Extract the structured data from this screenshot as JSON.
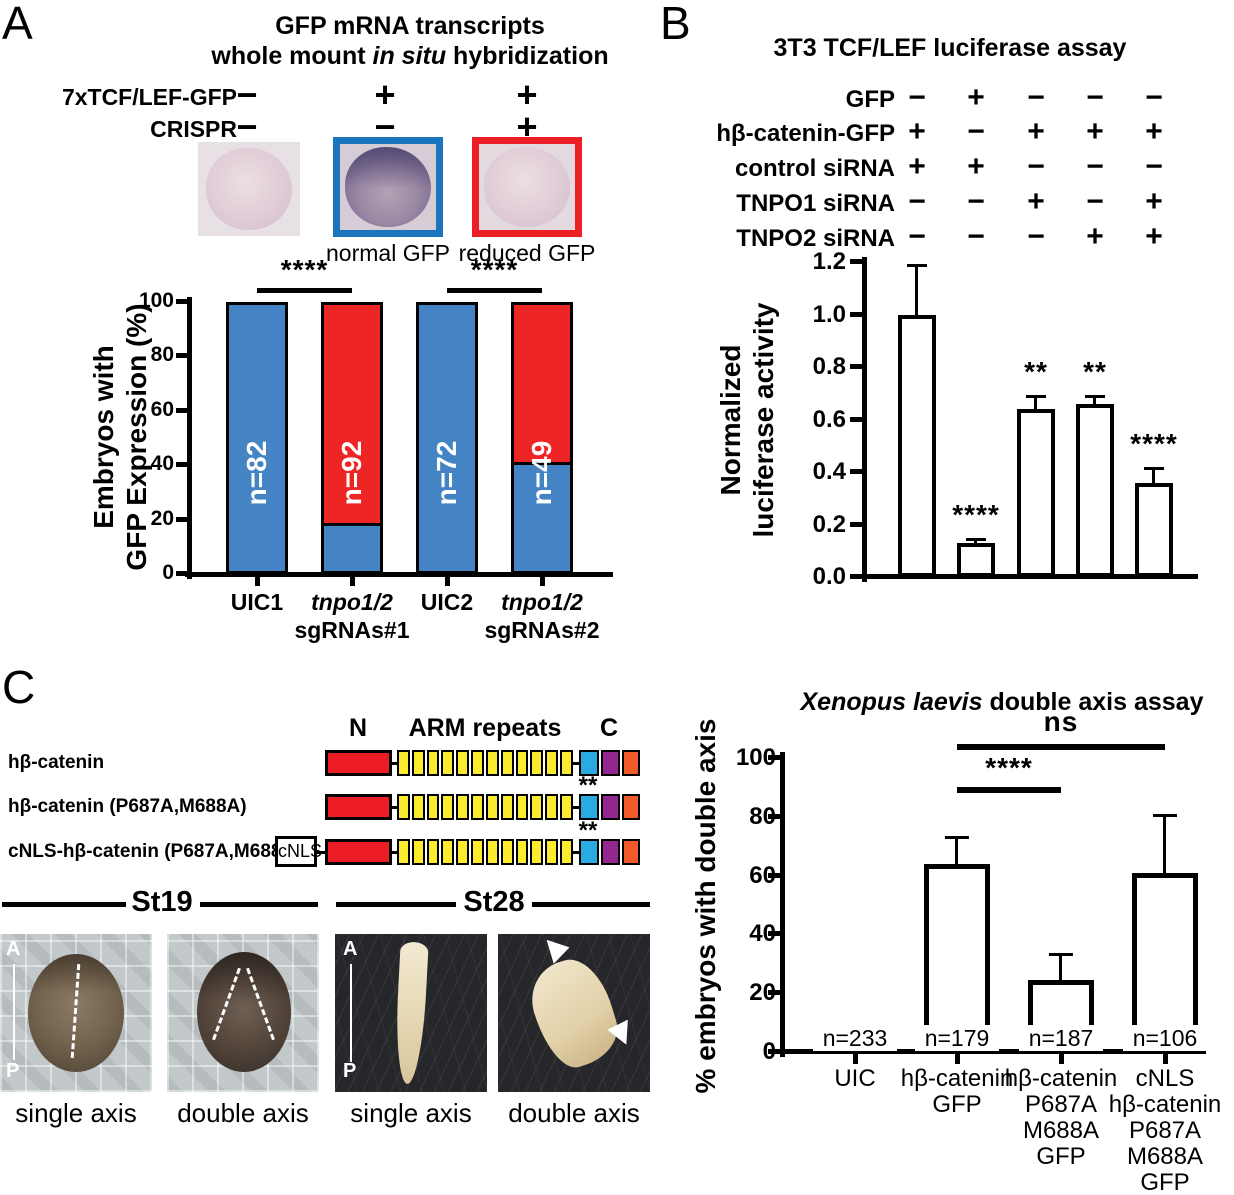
{
  "figure": {
    "panel_a": {
      "label": "A",
      "title_line1": "GFP mRNA transcripts",
      "title_line2_pre": "whole mount ",
      "title_line2_italic": "in situ",
      "title_line2_post": " hybridization",
      "conditions": [
        {
          "label": "7xTCF/LEF-GFP",
          "symbols": [
            "−",
            "+",
            "+"
          ]
        },
        {
          "label": "CRISPR",
          "symbols": [
            "−",
            "−",
            "+"
          ]
        }
      ],
      "image_captions": [
        "normal GFP",
        "reduced GFP"
      ]
    },
    "panel_b": {
      "label": "B",
      "conditions": [
        {
          "label": "GFP",
          "symbols": [
            "−",
            "+",
            "−",
            "−",
            "−"
          ]
        },
        {
          "label": "hβ-catenin-GFP",
          "symbols": [
            "+",
            "−",
            "+",
            "+",
            "+"
          ]
        },
        {
          "label": "control siRNA",
          "symbols": [
            "+",
            "+",
            "−",
            "−",
            "−"
          ]
        },
        {
          "label": "TNPO1 siRNA",
          "symbols": [
            "−",
            "−",
            "+",
            "−",
            "+"
          ]
        },
        {
          "label": "TNPO2 siRNA",
          "symbols": [
            "−",
            "−",
            "−",
            "+",
            "+"
          ]
        }
      ]
    },
    "panel_c": {
      "label": "C",
      "construct_headers": {
        "n": "N",
        "arm": "ARM repeats",
        "c": "C"
      },
      "constructs": [
        {
          "name": "hβ-catenin",
          "cnls": false,
          "cnls_label": "",
          "stars": ""
        },
        {
          "name": "hβ-catenin (P687A,M688A)",
          "cnls": false,
          "cnls_label": "",
          "stars": "**"
        },
        {
          "name": "cNLS-hβ-catenin (P687A,M688A)",
          "cnls": true,
          "cnls_label": "cNLS",
          "stars": "**"
        }
      ],
      "arm_repeat_count": 12,
      "stages": [
        {
          "label": "St19"
        },
        {
          "label": "St28"
        }
      ],
      "axis_marker": {
        "a": "A",
        "p": "P"
      },
      "image_captions": [
        "single axis",
        "double axis",
        "single axis",
        "double axis"
      ]
    },
    "colors": {
      "bar_blue": "#4484C4",
      "bar_red": "#ED2524",
      "image_border_blue": "#1B75BC",
      "image_border_red": "#EC2024",
      "construct_red": "#EC1C24",
      "construct_yellow": "#FBEB2E",
      "construct_cyan": "#29ABE2",
      "construct_purple": "#93278F",
      "construct_orange": "#F15A29"
    }
  },
  "chart_data": [
    {
      "id": "gfp_expression_wish",
      "type": "bar",
      "stacked": true,
      "ylabel": "Embryos with\nGFP Expression (%)",
      "ylim": [
        0,
        100
      ],
      "yticks": [
        0,
        20,
        40,
        60,
        80,
        100
      ],
      "ytick_labels": [
        "0",
        "20",
        "40",
        "60",
        "80",
        "100"
      ],
      "categories": [
        "UIC1",
        "tnpo1/2\nsgRNAs#1",
        "UIC2",
        "tnpo1/2\nsgRNAs#2"
      ],
      "categories_italic": [
        false,
        true,
        false,
        true
      ],
      "series": [
        {
          "name": "normal GFP",
          "color": "#4484C4",
          "values": [
            100,
            18,
            100,
            41
          ]
        },
        {
          "name": "reduced GFP",
          "color": "#ED2524",
          "values": [
            0,
            82,
            0,
            59
          ]
        }
      ],
      "bar_counts": [
        "n=82",
        "n=92",
        "n=72",
        "n=49"
      ],
      "significance": [
        {
          "from": 0,
          "to": 1,
          "label": "****"
        },
        {
          "from": 2,
          "to": 3,
          "label": "****"
        }
      ],
      "grid": false,
      "legend_position": "above-as-image-captions"
    },
    {
      "id": "luciferase_assay",
      "type": "bar",
      "title": "3T3 TCF/LEF luciferase assay",
      "ylabel": "Normalized\nluciferase activity",
      "ylim": [
        0,
        1.2
      ],
      "yticks": [
        0,
        0.2,
        0.4,
        0.6,
        0.8,
        1.0,
        1.2
      ],
      "ytick_labels": [
        "0.0",
        "0.2",
        "0.4",
        "0.6",
        "0.8",
        "1.0",
        "1.2"
      ],
      "values": [
        1.0,
        0.13,
        0.64,
        0.66,
        0.36
      ],
      "errors_up": [
        0.19,
        0.015,
        0.05,
        0.03,
        0.055
      ],
      "bar_annotations": [
        "",
        "****",
        "**",
        "**",
        "****"
      ],
      "bar_fill": "#FFFFFF",
      "grid": false
    },
    {
      "id": "double_axis_assay",
      "type": "bar",
      "title_italic": "Xenopus laevis",
      "title_rest": " double axis assay",
      "ylabel": "% embryos with double axis",
      "ylim": [
        0,
        100
      ],
      "yticks": [
        0,
        20,
        40,
        60,
        80,
        100
      ],
      "ytick_labels": [
        "0",
        "20",
        "40",
        "60",
        "80",
        "100"
      ],
      "categories": [
        "UIC",
        "hβ-catenin\nGFP",
        "hβ-catenin\nP687A\nM688A\nGFP",
        "cNLS\nhβ-catenin\nP687A\nM688A\nGFP"
      ],
      "values": [
        1,
        64,
        24.5,
        61
      ],
      "errors_up": [
        0,
        9,
        9,
        19.5
      ],
      "bar_counts": [
        "n=233",
        "n=179",
        "n=187",
        "n=106"
      ],
      "bar_fill": "#FFFFFF",
      "significance": [
        {
          "from": 1,
          "to": 3,
          "label": "ns"
        },
        {
          "from": 1,
          "to": 2,
          "label": "****"
        }
      ],
      "grid": false
    }
  ]
}
